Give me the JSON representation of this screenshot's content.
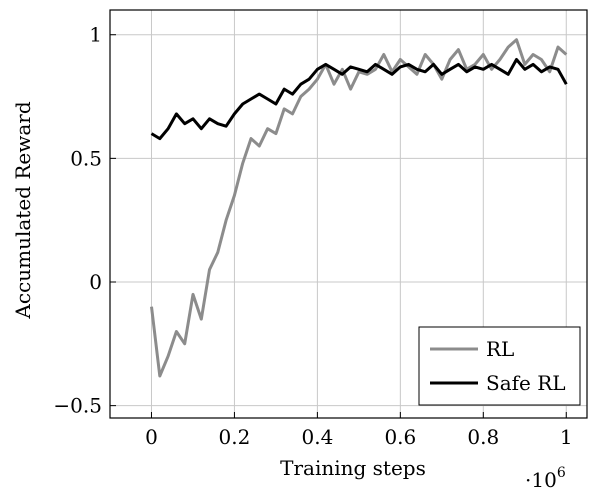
{
  "chart_data": {
    "type": "line",
    "xlabel": "Training steps",
    "ylabel": "Accumulated Reward",
    "x_multiplier_label": "·10",
    "x_multiplier_exponent": "6",
    "xlim": [
      -0.1,
      1.05
    ],
    "ylim": [
      -0.55,
      1.1
    ],
    "xticks": [
      0,
      0.2,
      0.4,
      0.6,
      0.8,
      1
    ],
    "xtick_labels": [
      "0",
      "0.2",
      "0.4",
      "0.6",
      "0.8",
      "1"
    ],
    "yticks": [
      -0.5,
      0,
      0.5,
      1
    ],
    "ytick_labels": [
      "−0.5",
      "0",
      "0.5",
      "1"
    ],
    "grid": true,
    "legend_position": "bottom-right",
    "series": [
      {
        "name": "RL",
        "color": "#8c8c8c",
        "x": [
          0,
          0.02,
          0.04,
          0.06,
          0.08,
          0.1,
          0.12,
          0.14,
          0.16,
          0.18,
          0.2,
          0.22,
          0.24,
          0.26,
          0.28,
          0.3,
          0.32,
          0.34,
          0.36,
          0.38,
          0.4,
          0.42,
          0.44,
          0.46,
          0.48,
          0.5,
          0.52,
          0.54,
          0.56,
          0.58,
          0.6,
          0.62,
          0.64,
          0.66,
          0.68,
          0.7,
          0.72,
          0.74,
          0.76,
          0.78,
          0.8,
          0.82,
          0.84,
          0.86,
          0.88,
          0.9,
          0.92,
          0.94,
          0.96,
          0.98,
          1.0
        ],
        "values": [
          -0.1,
          -0.38,
          -0.3,
          -0.2,
          -0.25,
          -0.05,
          -0.15,
          0.05,
          0.12,
          0.25,
          0.35,
          0.48,
          0.58,
          0.55,
          0.62,
          0.6,
          0.7,
          0.68,
          0.75,
          0.78,
          0.82,
          0.88,
          0.8,
          0.86,
          0.78,
          0.85,
          0.84,
          0.86,
          0.92,
          0.85,
          0.9,
          0.87,
          0.84,
          0.92,
          0.88,
          0.82,
          0.9,
          0.94,
          0.86,
          0.88,
          0.92,
          0.86,
          0.9,
          0.95,
          0.98,
          0.88,
          0.92,
          0.9,
          0.85,
          0.95,
          0.92
        ]
      },
      {
        "name": "Safe RL",
        "color": "#000000",
        "x": [
          0,
          0.02,
          0.04,
          0.06,
          0.08,
          0.1,
          0.12,
          0.14,
          0.16,
          0.18,
          0.2,
          0.22,
          0.24,
          0.26,
          0.28,
          0.3,
          0.32,
          0.34,
          0.36,
          0.38,
          0.4,
          0.42,
          0.44,
          0.46,
          0.48,
          0.5,
          0.52,
          0.54,
          0.56,
          0.58,
          0.6,
          0.62,
          0.64,
          0.66,
          0.68,
          0.7,
          0.72,
          0.74,
          0.76,
          0.78,
          0.8,
          0.82,
          0.84,
          0.86,
          0.88,
          0.9,
          0.92,
          0.94,
          0.96,
          0.98,
          1.0
        ],
        "values": [
          0.6,
          0.58,
          0.62,
          0.68,
          0.64,
          0.66,
          0.62,
          0.66,
          0.64,
          0.63,
          0.68,
          0.72,
          0.74,
          0.76,
          0.74,
          0.72,
          0.78,
          0.76,
          0.8,
          0.82,
          0.86,
          0.88,
          0.86,
          0.84,
          0.87,
          0.86,
          0.85,
          0.88,
          0.86,
          0.84,
          0.87,
          0.88,
          0.86,
          0.85,
          0.88,
          0.84,
          0.86,
          0.88,
          0.85,
          0.87,
          0.86,
          0.88,
          0.86,
          0.84,
          0.9,
          0.86,
          0.88,
          0.85,
          0.87,
          0.86,
          0.8
        ]
      }
    ]
  }
}
